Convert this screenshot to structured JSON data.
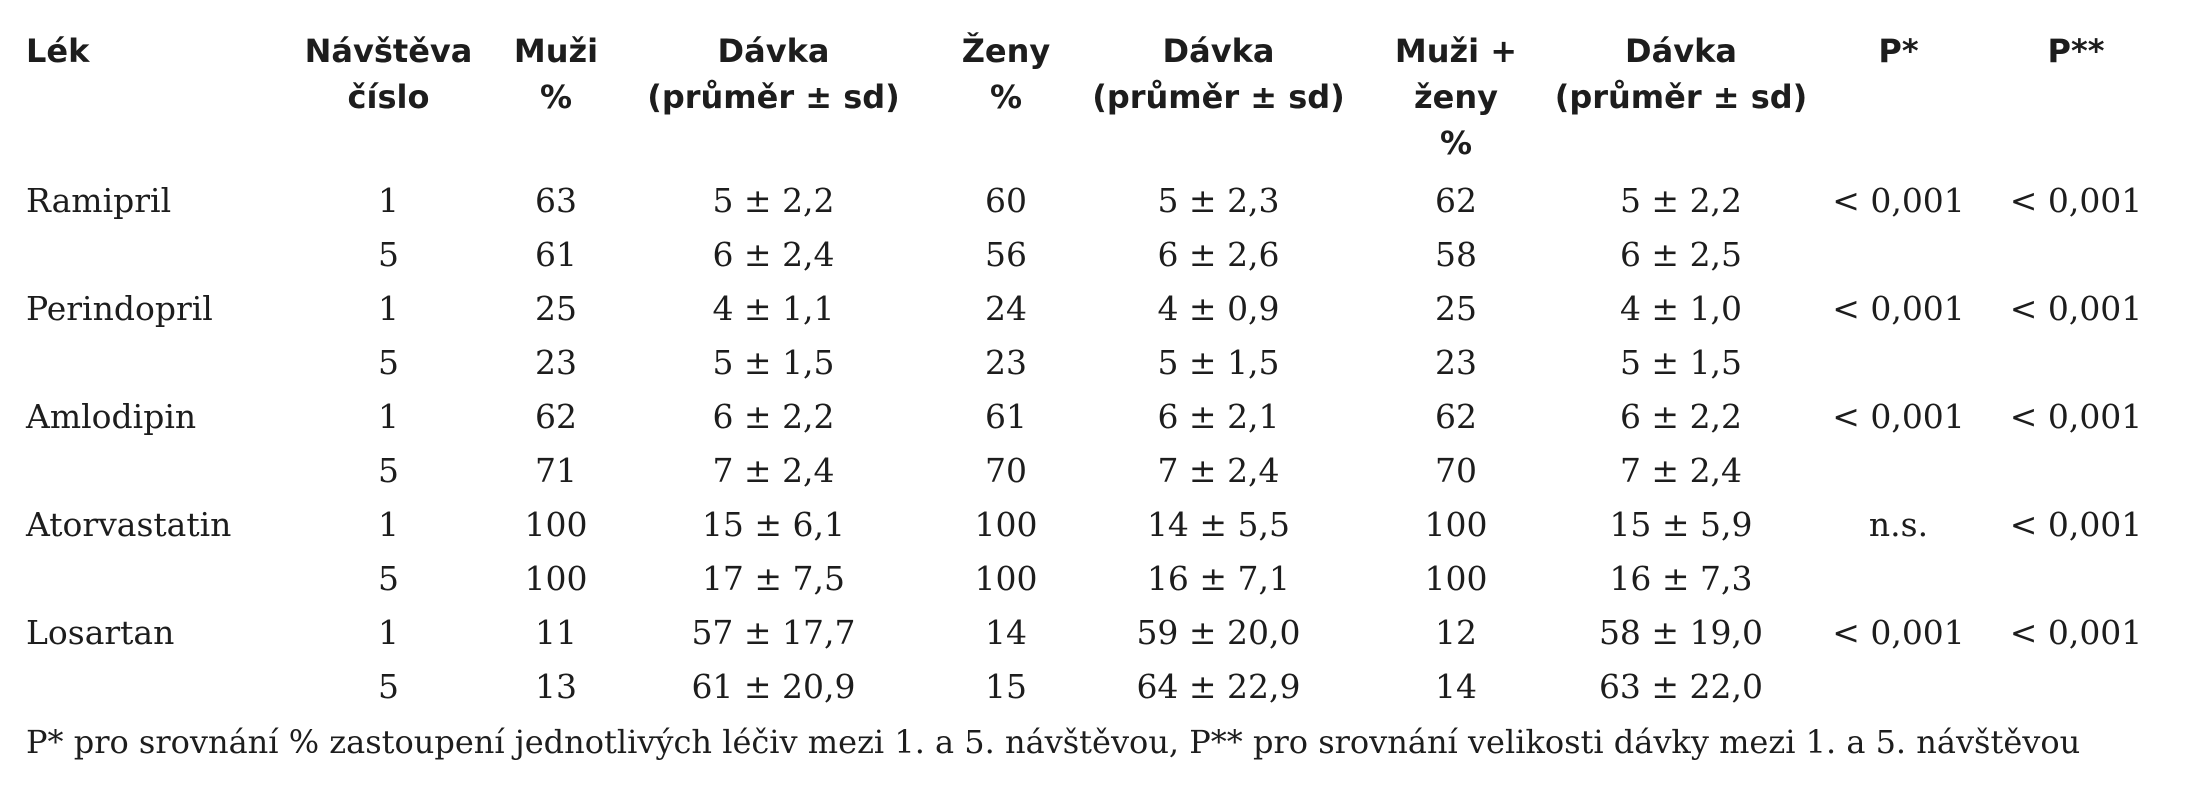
{
  "header": {
    "lek": "Lék",
    "navsteva": [
      "Návštěva",
      "číslo"
    ],
    "muzi": [
      "Muži",
      "%"
    ],
    "davka_muzi": [
      "Dávka",
      "(průměr ± sd)"
    ],
    "zeny": [
      "Ženy",
      "%"
    ],
    "davka_zeny": [
      "Dávka",
      "(průměr ± sd)"
    ],
    "muzi_zeny": [
      "Muži + ženy",
      "%"
    ],
    "davka_mz": [
      "Dávka",
      "(průměr ± sd)"
    ],
    "p1": "P*",
    "p2": "P**"
  },
  "rows": [
    [
      "Ramipril",
      "1",
      "63",
      "5 ± 2,2",
      "60",
      "5 ± 2,3",
      "62",
      "5 ± 2,2",
      "< 0,001",
      "< 0,001"
    ],
    [
      "",
      "5",
      "61",
      "6 ± 2,4",
      "56",
      "6 ± 2,6",
      "58",
      "6 ± 2,5",
      "",
      ""
    ],
    [
      "Perindopril",
      "1",
      "25",
      "4 ± 1,1",
      "24",
      "4 ± 0,9",
      "25",
      "4 ± 1,0",
      "< 0,001",
      "< 0,001"
    ],
    [
      "",
      "5",
      "23",
      "5 ± 1,5",
      "23",
      "5 ± 1,5",
      "23",
      "5 ± 1,5",
      "",
      ""
    ],
    [
      "Amlodipin",
      "1",
      "62",
      "6 ± 2,2",
      "61",
      "6 ± 2,1",
      "62",
      "6 ± 2,2",
      "< 0,001",
      "< 0,001"
    ],
    [
      "",
      "5",
      "71",
      "7 ± 2,4",
      "70",
      "7 ± 2,4",
      "70",
      "7 ± 2,4",
      "",
      ""
    ],
    [
      "Atorvastatin",
      "1",
      "100",
      "15 ± 6,1",
      "100",
      "14 ± 5,5",
      "100",
      "15 ± 5,9",
      "n.s.",
      "< 0,001"
    ],
    [
      "",
      "5",
      "100",
      "17 ± 7,5",
      "100",
      "16 ± 7,1",
      "100",
      "16 ± 7,3",
      "",
      ""
    ],
    [
      "Losartan",
      "1",
      "11",
      "57 ± 17,7",
      "14",
      "59 ± 20,0",
      "12",
      "58 ± 19,0",
      "< 0,001",
      "< 0,001"
    ],
    [
      "",
      "5",
      "13",
      "61 ± 20,9",
      "15",
      "64 ± 22,9",
      "14",
      "63 ± 22,0",
      "",
      ""
    ]
  ],
  "footnote": "P* pro srovnání % zastoupení jednotlivých léčiv mezi 1. a 5. návštěvou, P** pro srovnání velikosti dávky mezi 1. a 5. návštěvou"
}
